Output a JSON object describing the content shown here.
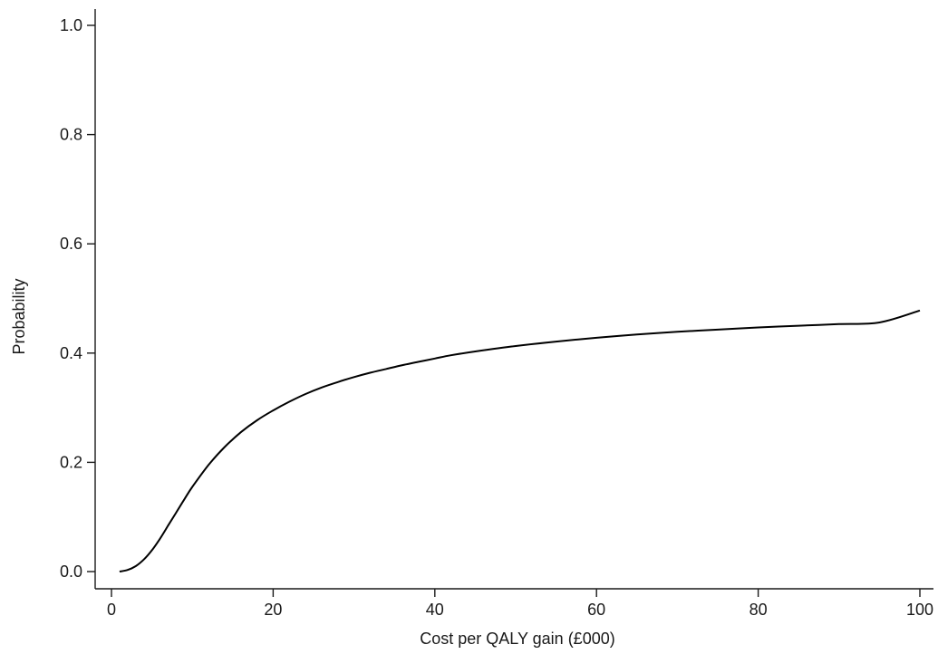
{
  "chart_data": {
    "type": "line",
    "title": "",
    "xlabel": "Cost per QALY gain (£000)",
    "ylabel": "Probability",
    "xlim": [
      0,
      100
    ],
    "ylim": [
      0,
      1
    ],
    "xticks": [
      0,
      20,
      40,
      60,
      80,
      100
    ],
    "yticks": [
      0.0,
      0.2,
      0.4,
      0.6,
      0.8,
      1.0
    ],
    "xtick_labels": [
      "0",
      "20",
      "40",
      "60",
      "80",
      "100"
    ],
    "ytick_labels": [
      "0.0",
      "0.2",
      "0.4",
      "0.6",
      "0.8",
      "1.0"
    ],
    "grid": false,
    "legend": "none",
    "line_color": "#000000",
    "series": [
      {
        "x": [
          1,
          2,
          3,
          4,
          5,
          6,
          7,
          8,
          9,
          10,
          12,
          14,
          16,
          18,
          20,
          22,
          24,
          26,
          28,
          30,
          32,
          34,
          36,
          38,
          40,
          42,
          45,
          50,
          55,
          60,
          65,
          70,
          75,
          80,
          85,
          90,
          95,
          100
        ],
        "values": [
          0.0,
          0.003,
          0.01,
          0.022,
          0.039,
          0.06,
          0.084,
          0.108,
          0.132,
          0.155,
          0.195,
          0.228,
          0.255,
          0.277,
          0.295,
          0.311,
          0.325,
          0.337,
          0.347,
          0.356,
          0.364,
          0.371,
          0.378,
          0.384,
          0.39,
          0.396,
          0.403,
          0.413,
          0.421,
          0.428,
          0.434,
          0.439,
          0.443,
          0.447,
          0.45,
          0.453,
          0.456,
          0.478
        ]
      }
    ]
  }
}
